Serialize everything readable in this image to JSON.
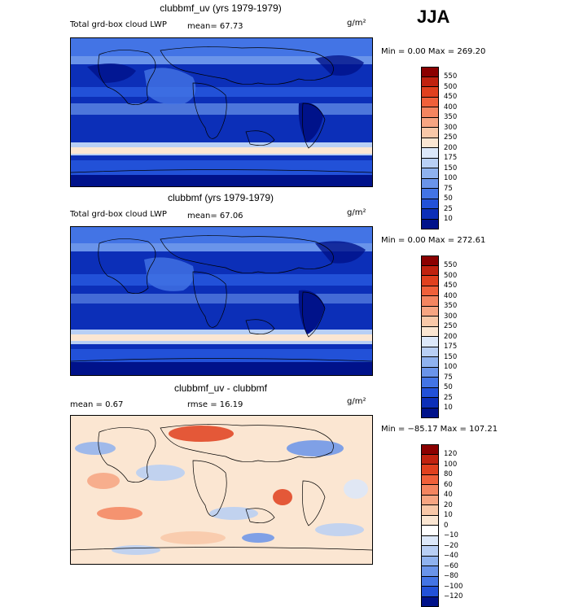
{
  "season": "JJA",
  "units": "g/m²",
  "panels": [
    {
      "title": "clubbmf_uv (yrs 1979-1979)",
      "left_text": "Total grd-box cloud LWP",
      "mean_text": "mean=   67.73",
      "minmax": "Min =    0.00 Max = 269.20"
    },
    {
      "title": "clubbmf (yrs 1979-1979)",
      "left_text": "Total grd-box cloud LWP",
      "mean_text": "mean=   67.06",
      "minmax": "Min =    0.00 Max = 272.61"
    },
    {
      "title": "clubbmf_uv - clubbmf",
      "left_text": "mean =    0.67",
      "mean_text": "rmse =   16.19",
      "minmax": "Min = −85.17 Max = 107.21"
    }
  ],
  "colorbar_abs": {
    "labels": [
      "550",
      "500",
      "450",
      "400",
      "350",
      "300",
      "250",
      "200",
      "175",
      "150",
      "100",
      "75",
      "50",
      "25",
      "10"
    ],
    "colors": [
      "#8b0000",
      "#c0220f",
      "#e0401e",
      "#f0603a",
      "#f48560",
      "#f7a582",
      "#f9c8a8",
      "#fbe6d2",
      "#dce8fa",
      "#b8cff5",
      "#8fb2ef",
      "#6a94ea",
      "#4374e5",
      "#2251d8",
      "#0c2fb8",
      "#00128a"
    ]
  },
  "colorbar_diff": {
    "labels": [
      "120",
      "100",
      "80",
      "60",
      "40",
      "20",
      "10",
      "0",
      "−10",
      "−20",
      "−40",
      "−60",
      "−80",
      "−100",
      "−120"
    ],
    "colors": [
      "#8b0000",
      "#c0220f",
      "#e0401e",
      "#f0603a",
      "#f48560",
      "#f7a582",
      "#f9c8a8",
      "#fbe6d2",
      "#ffffff",
      "#dce8fa",
      "#b8cff5",
      "#8fb2ef",
      "#6a94ea",
      "#4374e5",
      "#2251d8",
      "#00128a"
    ]
  }
}
